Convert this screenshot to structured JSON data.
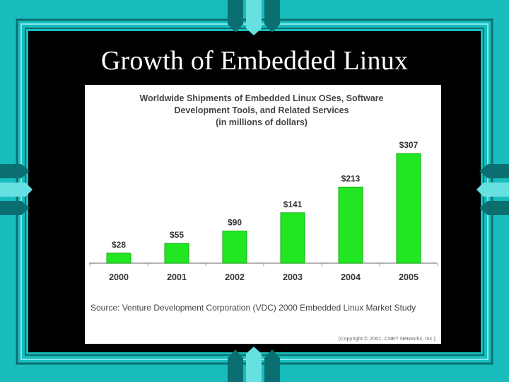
{
  "slide": {
    "title": "Growth of Embedded Linux"
  },
  "colors": {
    "frame": "#18bcbc",
    "frame_light": "#66e0e0",
    "frame_dark": "#0b6e70",
    "bar": "#22e622",
    "bar_edge": "#10b010"
  },
  "chart_data": {
    "type": "bar",
    "title_lines": [
      "Worldwide Shipments of Embedded Linux OSes, Software",
      "Development Tools, and Related Services",
      "(in millions of dollars)"
    ],
    "categories": [
      "2000",
      "2001",
      "2002",
      "2003",
      "2004",
      "2005"
    ],
    "values": [
      28,
      55,
      90,
      141,
      213,
      307
    ],
    "data_labels": [
      "$28",
      "$55",
      "$90",
      "$141",
      "$213",
      "$307"
    ],
    "ylim": [
      0,
      307
    ],
    "grid": false,
    "source": "Source:  Venture Development Corporation (VDC) 2000 Embedded Linux Market Study",
    "copyright": "(Copyright © 2001, CNET Networks, Inc.)"
  }
}
